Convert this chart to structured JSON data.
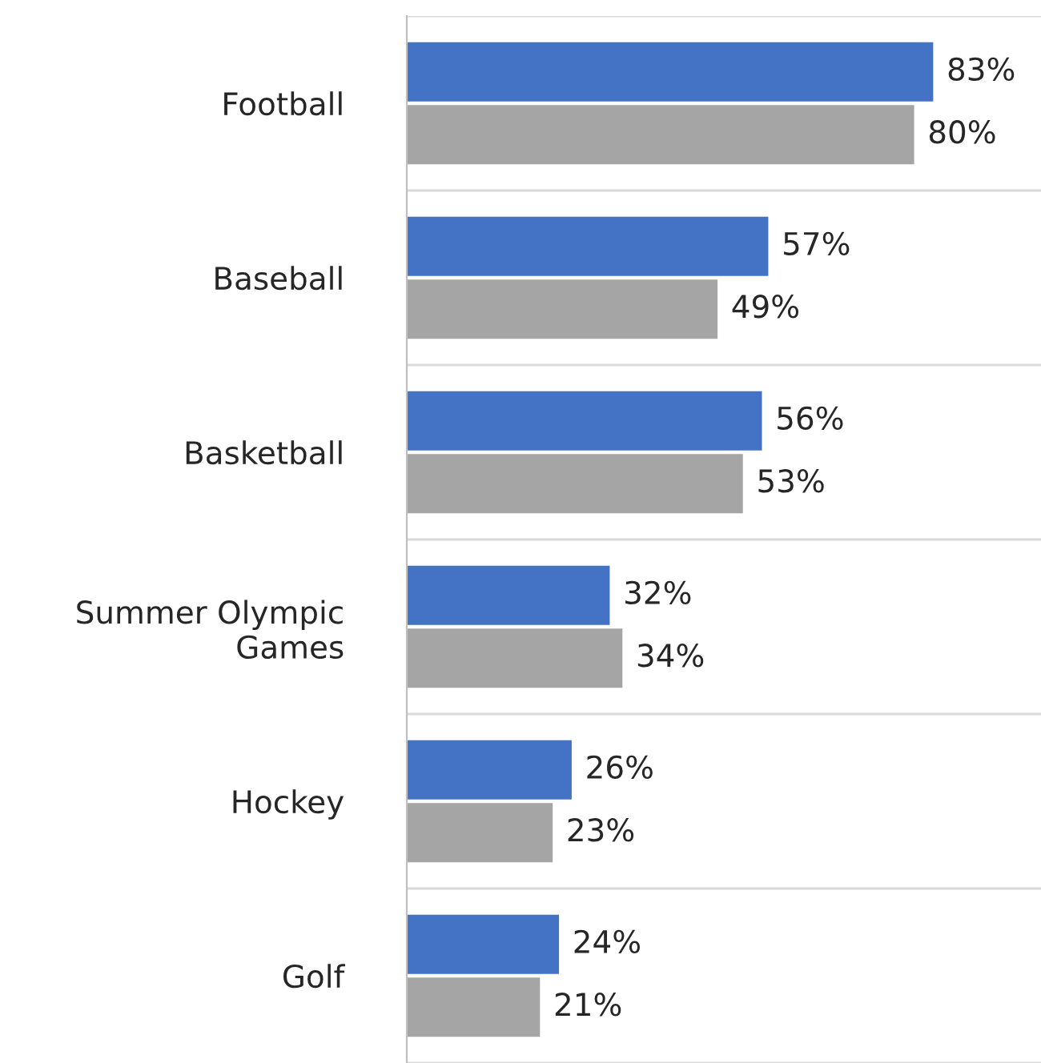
{
  "chart_data": {
    "type": "bar",
    "orientation": "horizontal",
    "categories": [
      "Football",
      "Baseball",
      "Basketball",
      "Summer Olympic\nGames",
      "Hockey",
      "Golf"
    ],
    "series": [
      {
        "color": "#4472c4",
        "values": [
          83,
          57,
          56,
          32,
          26,
          24
        ],
        "value_labels": [
          "83%",
          "57%",
          "56%",
          "32%",
          "26%",
          "24%"
        ]
      },
      {
        "color": "#a5a5a5",
        "values": [
          80,
          49,
          53,
          34,
          23,
          21
        ],
        "value_labels": [
          "80%",
          "49%",
          "53%",
          "34%",
          "23%",
          "21%"
        ]
      }
    ],
    "xlim": [
      0,
      100
    ],
    "tick_labels": "y",
    "grid": "y",
    "legend": false
  }
}
